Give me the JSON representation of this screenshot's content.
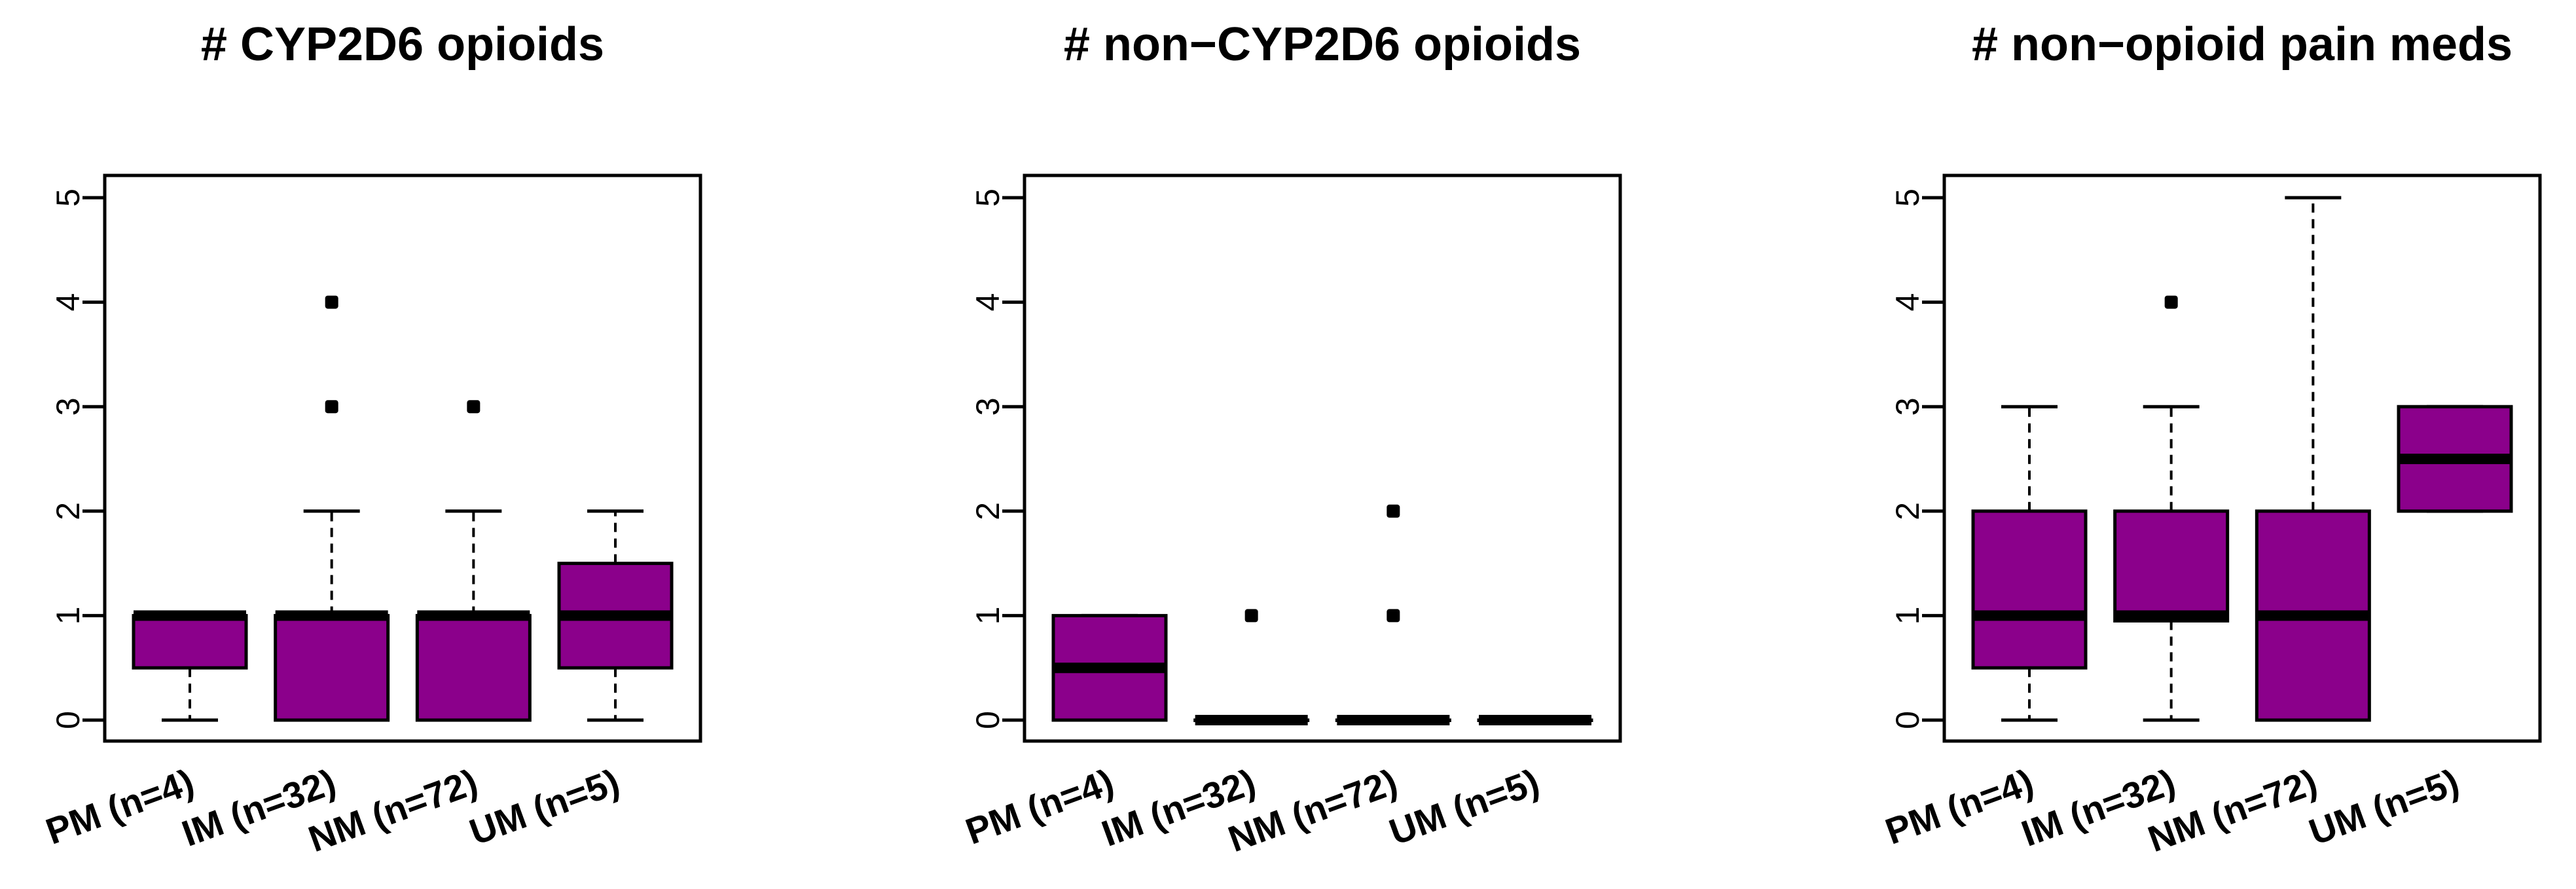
{
  "chart_data": [
    {
      "type": "boxplot",
      "title": "# CYP2D6 opioids",
      "categories": [
        "PM (n=4)",
        "IM (n=32)",
        "NM (n=72)",
        "UM (n=5)"
      ],
      "ylim": [
        0,
        5
      ],
      "yticks": [
        "0",
        "1",
        "2",
        "3",
        "4",
        "5"
      ],
      "boxes": [
        {
          "min": 0,
          "q1": 0.5,
          "median": 1,
          "q3": 1,
          "max": 1,
          "outliers": []
        },
        {
          "min": 0,
          "q1": 0,
          "median": 1,
          "q3": 1,
          "max": 2,
          "outliers": [
            3,
            4
          ]
        },
        {
          "min": 0,
          "q1": 0,
          "median": 1,
          "q3": 1,
          "max": 2,
          "outliers": [
            3
          ]
        },
        {
          "min": 0,
          "q1": 0.5,
          "median": 1,
          "q3": 1.5,
          "max": 2,
          "outliers": []
        }
      ]
    },
    {
      "type": "boxplot",
      "title": "# non−CYP2D6 opioids",
      "categories": [
        "PM (n=4)",
        "IM (n=32)",
        "NM (n=72)",
        "UM (n=5)"
      ],
      "ylim": [
        0,
        5
      ],
      "yticks": [
        "0",
        "1",
        "2",
        "3",
        "4",
        "5"
      ],
      "boxes": [
        {
          "min": 0,
          "q1": 0,
          "median": 0.5,
          "q3": 1,
          "max": 1,
          "outliers": []
        },
        {
          "min": 0,
          "q1": 0,
          "median": 0,
          "q3": 0,
          "max": 0,
          "outliers": [
            1
          ]
        },
        {
          "min": 0,
          "q1": 0,
          "median": 0,
          "q3": 0,
          "max": 0,
          "outliers": [
            1,
            2
          ]
        },
        {
          "min": 0,
          "q1": 0,
          "median": 0,
          "q3": 0,
          "max": 0,
          "outliers": []
        }
      ]
    },
    {
      "type": "boxplot",
      "title": "# non−opioid pain meds",
      "categories": [
        "PM (n=4)",
        "IM (n=32)",
        "NM (n=72)",
        "UM (n=5)"
      ],
      "ylim": [
        0,
        5
      ],
      "yticks": [
        "0",
        "1",
        "2",
        "3",
        "4",
        "5"
      ],
      "boxes": [
        {
          "min": 0,
          "q1": 0.5,
          "median": 1,
          "q3": 2,
          "max": 3,
          "outliers": []
        },
        {
          "min": 0,
          "q1": 0.95,
          "median": 1,
          "q3": 2,
          "max": 3,
          "outliers": [
            4
          ]
        },
        {
          "min": 0,
          "q1": 0,
          "median": 1,
          "q3": 2,
          "max": 5,
          "outliers": []
        },
        {
          "min": 2,
          "q1": 2,
          "median": 2.5,
          "q3": 3,
          "max": 3,
          "outliers": []
        }
      ]
    }
  ],
  "colors": {
    "box_fill": "#8B008B",
    "line": "#000000"
  }
}
